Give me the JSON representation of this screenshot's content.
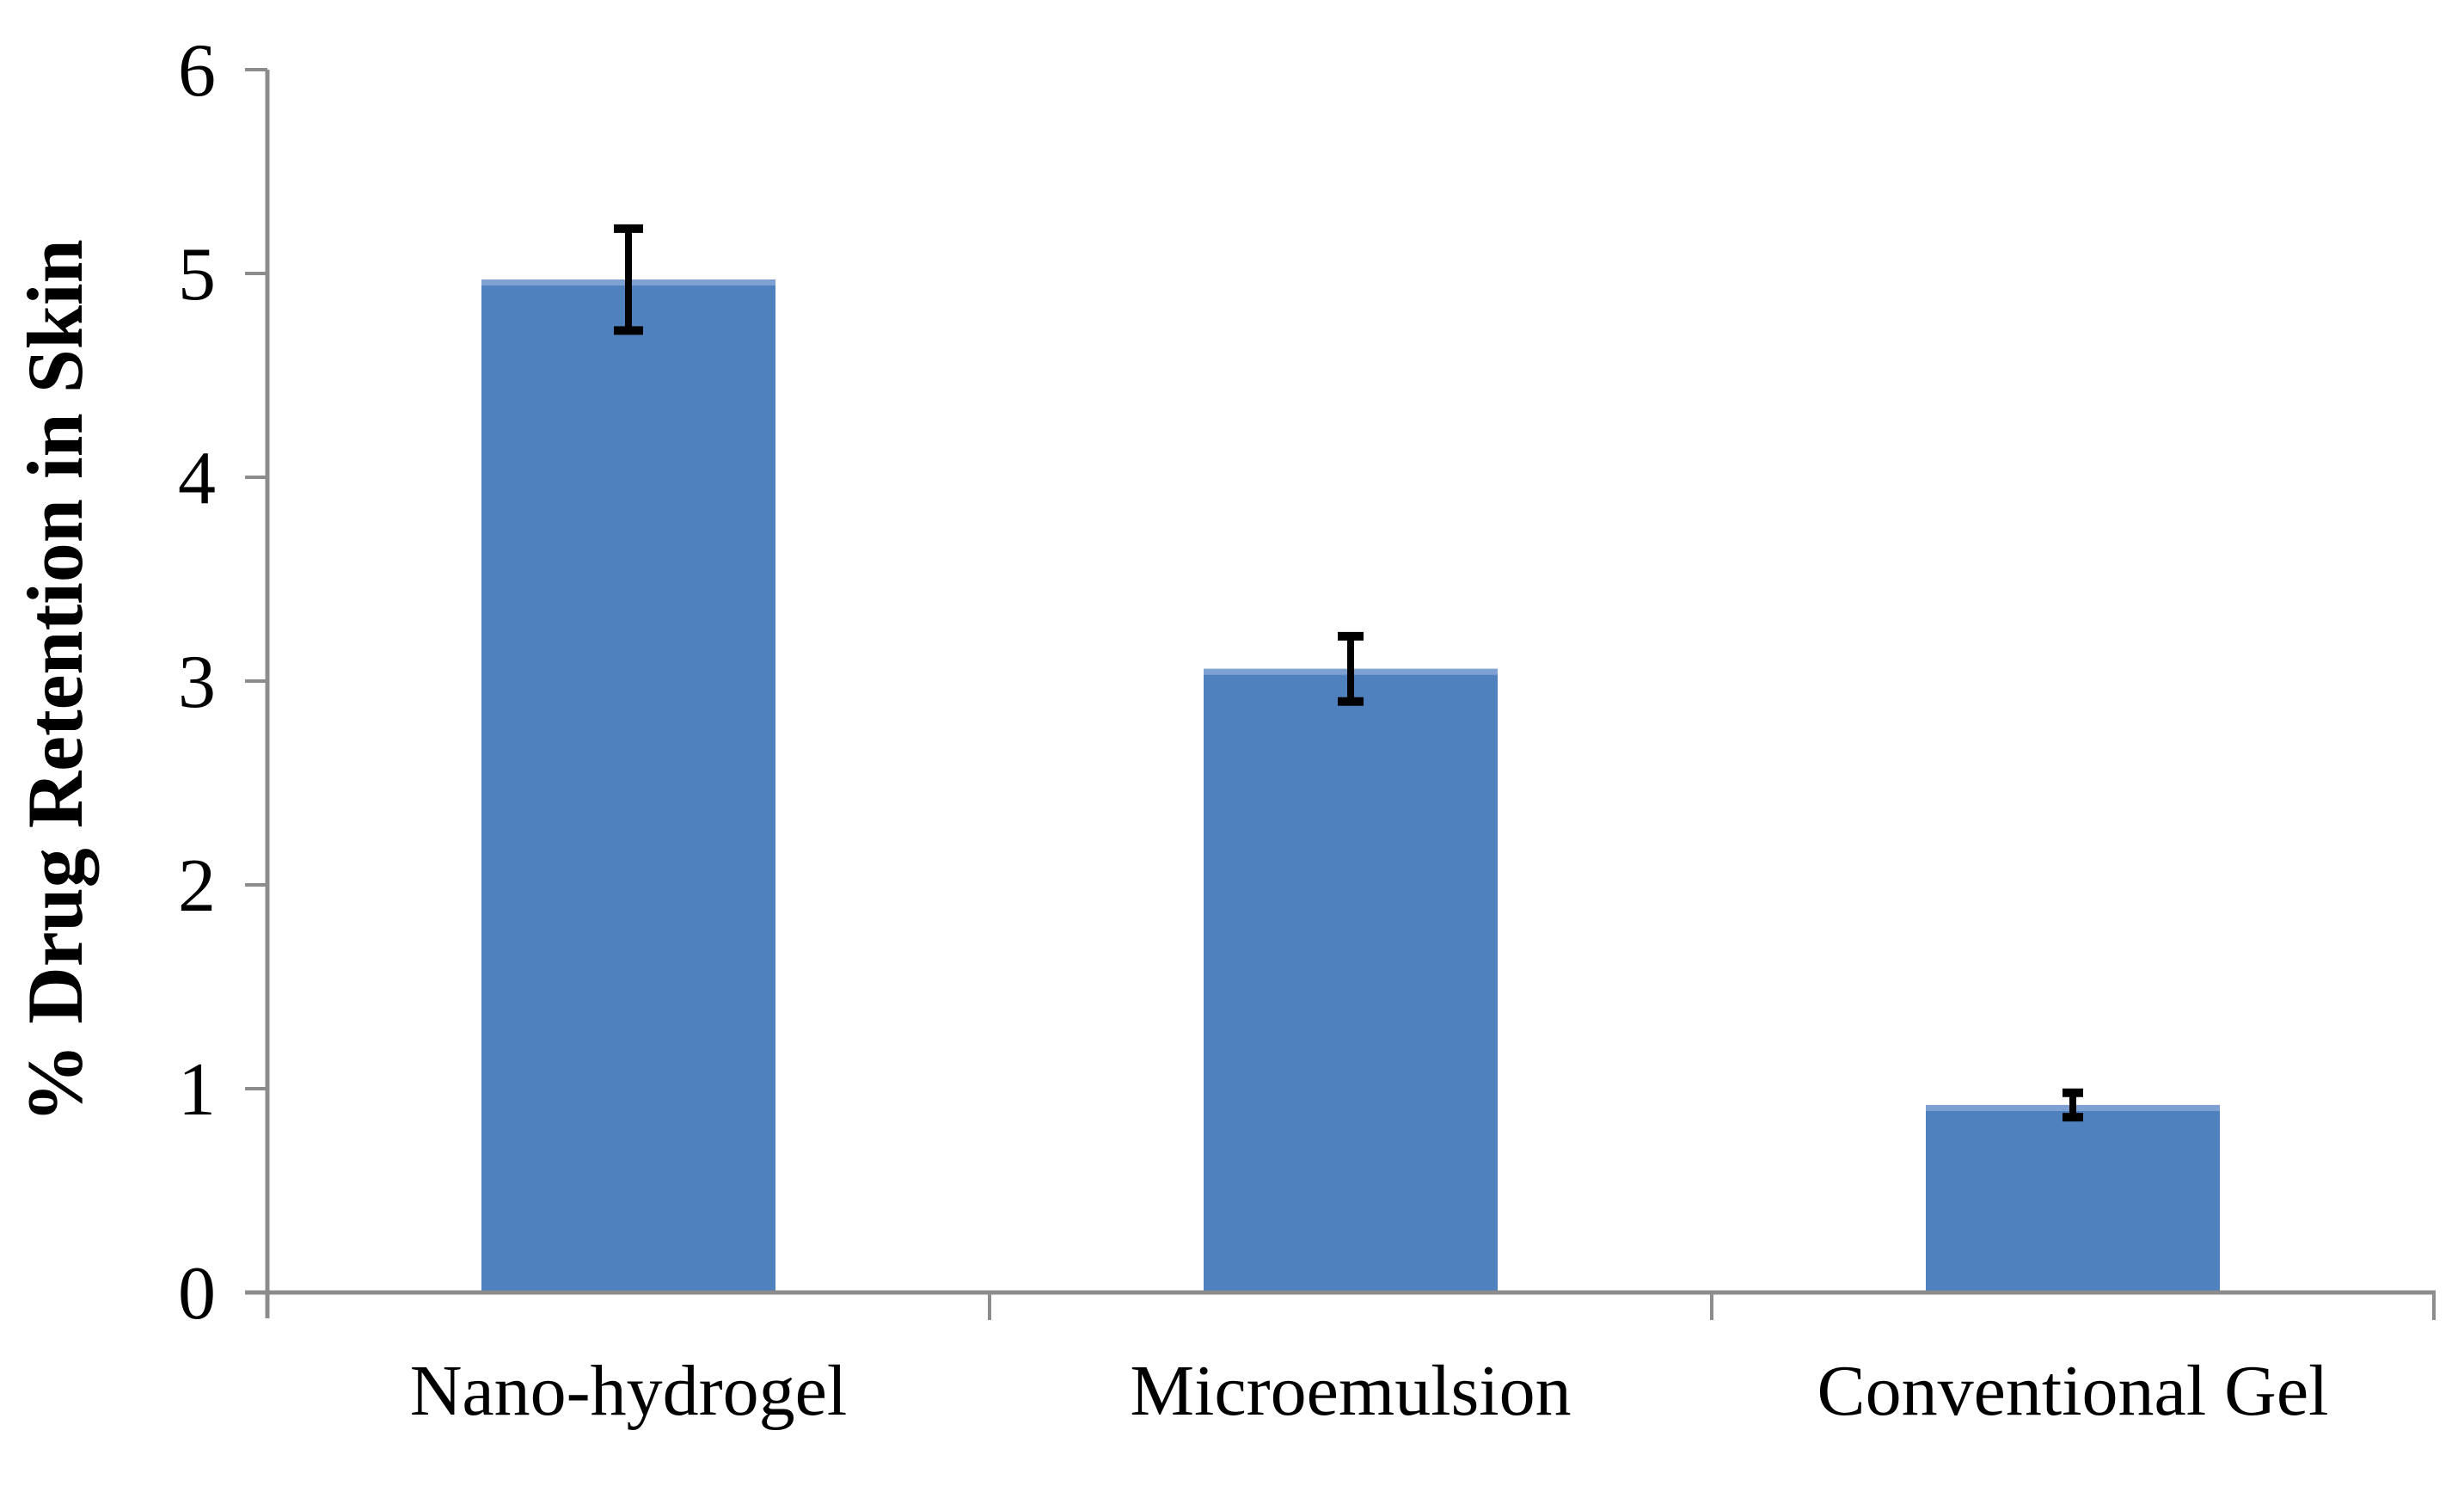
{
  "chart_data": {
    "type": "bar",
    "title": "",
    "ylabel": "% Drug Retention in Skin",
    "xlabel": "",
    "categories": [
      "Nano-hydrogel",
      "Microemulsion",
      "Conventional Gel"
    ],
    "values": [
      4.97,
      3.06,
      0.92
    ],
    "errors": [
      0.25,
      0.16,
      0.06
    ],
    "series": [
      {
        "name": "% Drug Retention in Skin",
        "values": [
          4.97,
          3.06,
          0.92
        ],
        "errors": [
          0.25,
          0.16,
          0.06
        ]
      }
    ],
    "yticks": [
      0,
      1,
      2,
      3,
      4,
      5,
      6
    ],
    "ylim": [
      0,
      6
    ],
    "ytick_step": 1,
    "grid": false,
    "legend_position": "none",
    "error_bars": "vertical-symmetric",
    "colors": {
      "bar": "#4E81BD",
      "bar_top_edge": "#7EA0D2",
      "axis": "#8C8C8C",
      "error_bar": "#000000",
      "text": "#000000",
      "background": "#FFFFFF"
    }
  }
}
